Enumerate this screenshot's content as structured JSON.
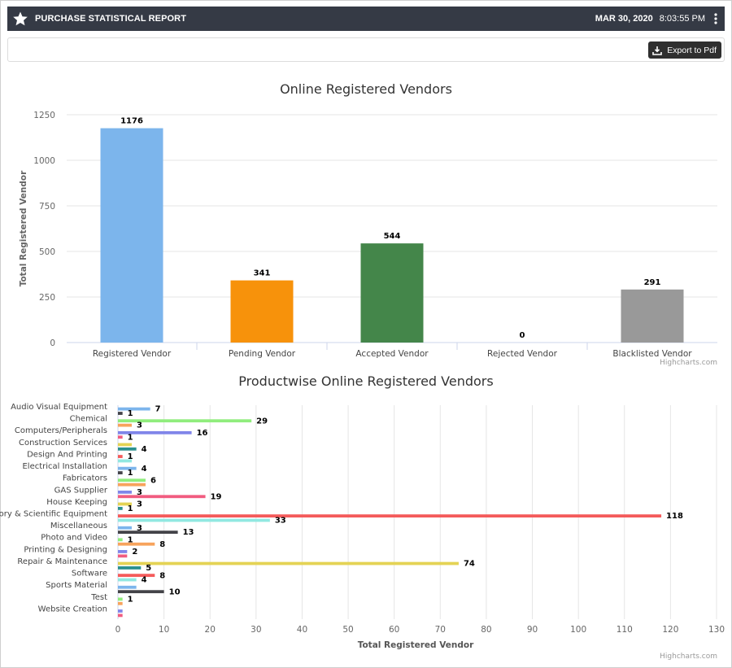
{
  "header": {
    "title": "PURCHASE STATISTICAL REPORT",
    "date": "MAR 30, 2020",
    "time": "8:03:55 PM",
    "star_icon": "star-icon",
    "menu_icon": "kebab-menu-icon",
    "background": "#353a45"
  },
  "toolbar": {
    "export_label": "Export to Pdf",
    "export_icon": "download-icon"
  },
  "credits": "Highcharts.com",
  "chart_data": [
    {
      "type": "bar",
      "title": "Online Registered Vendors",
      "xlabel": "",
      "ylabel": "Total Registered Vendor",
      "categories": [
        "Registered Vendor",
        "Pending Vendor",
        "Accepted Vendor",
        "Rejected Vendor",
        "Blacklisted Vendor"
      ],
      "values": [
        1176,
        341,
        544,
        0,
        291
      ],
      "colors": [
        "#7cb5ec",
        "#f7920b",
        "#44864a",
        "#434348",
        "#999999"
      ],
      "ylim": [
        0,
        1250
      ],
      "yticks": [
        0,
        250,
        500,
        750,
        1000,
        1250
      ],
      "grid": true,
      "data_labels": true
    },
    {
      "type": "bar",
      "orientation": "horizontal",
      "title": "Productwise Online Registered Vendors",
      "xlabel": "Total Registered Vendor",
      "ylabel": "",
      "categories": [
        "Audio Visual Equipment",
        "Chemical",
        "Computers/Peripherals",
        "Construction Services",
        "Design And Printing",
        "Electrical Installation",
        "Fabricators",
        "GAS Supplier",
        "House Keeping",
        "Laboratory & Scientific Equipment",
        "Miscellaneous",
        "Photo and Video",
        "Printing & Designing",
        "Repair & Maintenance",
        "Software",
        "Sports Material",
        "Test",
        "Website Creation"
      ],
      "series": [
        {
          "values": [
            7,
            29,
            16,
            3,
            1,
            4,
            6,
            3,
            3,
            118,
            3,
            1,
            2,
            74,
            8,
            4,
            1,
            1
          ],
          "color": "#7cb5ec"
        },
        {
          "values": [
            1,
            3,
            1,
            4,
            3,
            1,
            6,
            19,
            1,
            33,
            13,
            8,
            2,
            5,
            4,
            10,
            1,
            1
          ],
          "color": "#434348"
        }
      ],
      "bar_colors": [
        [
          "#7cb5ec",
          "#434348"
        ],
        [
          "#90ed7d",
          "#f7a35c"
        ],
        [
          "#8085e9",
          "#f15c80"
        ],
        [
          "#e4d354",
          "#2b908f"
        ],
        [
          "#f45b5b",
          "#91e8e1"
        ],
        [
          "#7cb5ec",
          "#434348"
        ],
        [
          "#90ed7d",
          "#f7a35c"
        ],
        [
          "#8085e9",
          "#f15c80"
        ],
        [
          "#e4d354",
          "#2b908f"
        ],
        [
          "#f45b5b",
          "#91e8e1"
        ],
        [
          "#7cb5ec",
          "#434348"
        ],
        [
          "#90ed7d",
          "#f7a35c"
        ],
        [
          "#8085e9",
          "#f15c80"
        ],
        [
          "#e4d354",
          "#2b908f"
        ],
        [
          "#f45b5b",
          "#91e8e1"
        ],
        [
          "#7cb5ec",
          "#434348"
        ],
        [
          "#90ed7d",
          "#f7a35c"
        ],
        [
          "#8085e9",
          "#f15c80"
        ]
      ],
      "bar_labels": [
        [
          "7",
          "1"
        ],
        [
          "29",
          "3"
        ],
        [
          "16",
          "1"
        ],
        [
          "",
          "4"
        ],
        [
          "1",
          ""
        ],
        [
          "4",
          "1"
        ],
        [
          "6",
          ""
        ],
        [
          "3",
          "19"
        ],
        [
          "3",
          "1"
        ],
        [
          "118",
          "33"
        ],
        [
          "3",
          "13"
        ],
        [
          "1",
          "8"
        ],
        [
          "2",
          ""
        ],
        [
          "74",
          "5"
        ],
        [
          "8",
          "4"
        ],
        [
          "",
          "10"
        ],
        [
          "1",
          ""
        ],
        [
          "",
          ""
        ]
      ],
      "xlim": [
        0,
        130
      ],
      "xticks": [
        0,
        10,
        20,
        30,
        40,
        50,
        60,
        70,
        80,
        90,
        100,
        110,
        120,
        130
      ],
      "grid": true,
      "data_labels": true
    }
  ]
}
